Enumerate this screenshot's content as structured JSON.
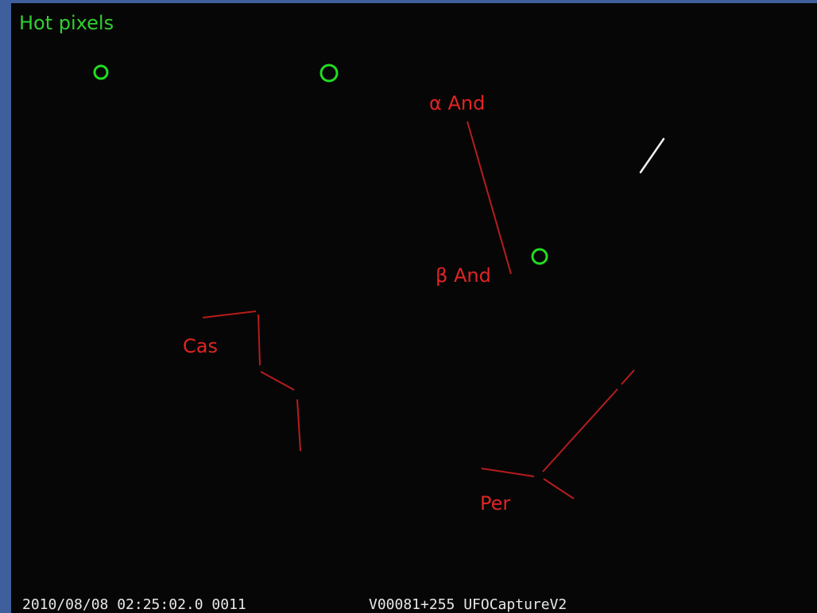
{
  "title": "Hot pixels",
  "labels": [
    "α And",
    "β And",
    "Cas",
    "Per"
  ],
  "footer": {
    "timestamp": "2010/08/08 02:25:02.0 0011",
    "camera": "V00081+255 UFOCaptureV2"
  }
}
